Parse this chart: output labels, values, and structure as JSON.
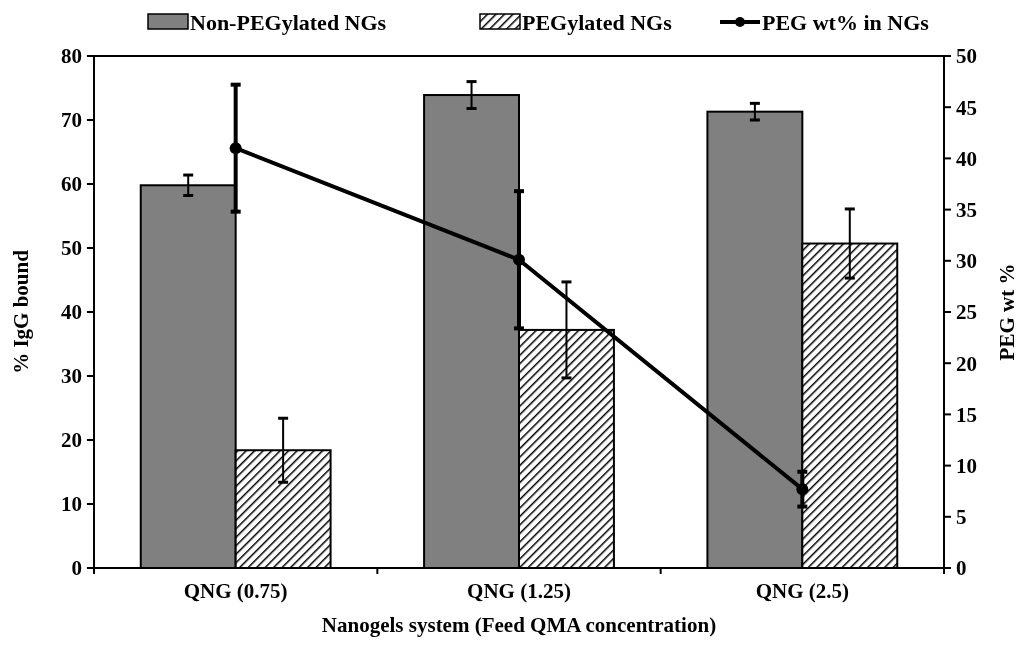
{
  "chart_data": {
    "type": "bar",
    "xlabel": "Nanogels system (Feed QMA concentration)",
    "ylabel": "% IgG bound",
    "y2label": "PEG wt %",
    "categories": [
      "QNG (0.75)",
      "QNG (1.25)",
      "QNG (2.5)"
    ],
    "series": [
      {
        "name": "Non-PEGylated NGs",
        "color": "#808080",
        "values": [
          59.8,
          73.9,
          71.3
        ],
        "errors": [
          1.6,
          2.1,
          1.3
        ]
      },
      {
        "name": "PEGylated NGs",
        "color": "#000000",
        "values": [
          18.4,
          37.2,
          50.7
        ],
        "errors": [
          5,
          7.5,
          5.4
        ]
      },
      {
        "name": "PEG wt% in NGs",
        "type": "line",
        "axis": "y2",
        "color": "#000000",
        "marker": "circle",
        "values": [
          41.0,
          30.1,
          7.7
        ],
        "errors": [
          6.2,
          6.7,
          1.7
        ]
      }
    ],
    "ylim": [
      0,
      80
    ],
    "yticks": [
      0,
      10,
      20,
      30,
      40,
      50,
      60,
      70,
      80
    ],
    "y2lim": [
      0,
      50
    ],
    "y2ticks": [
      0,
      5,
      10,
      15,
      20,
      25,
      30,
      35,
      40,
      45,
      50
    ],
    "grid": false,
    "legend": "top"
  }
}
